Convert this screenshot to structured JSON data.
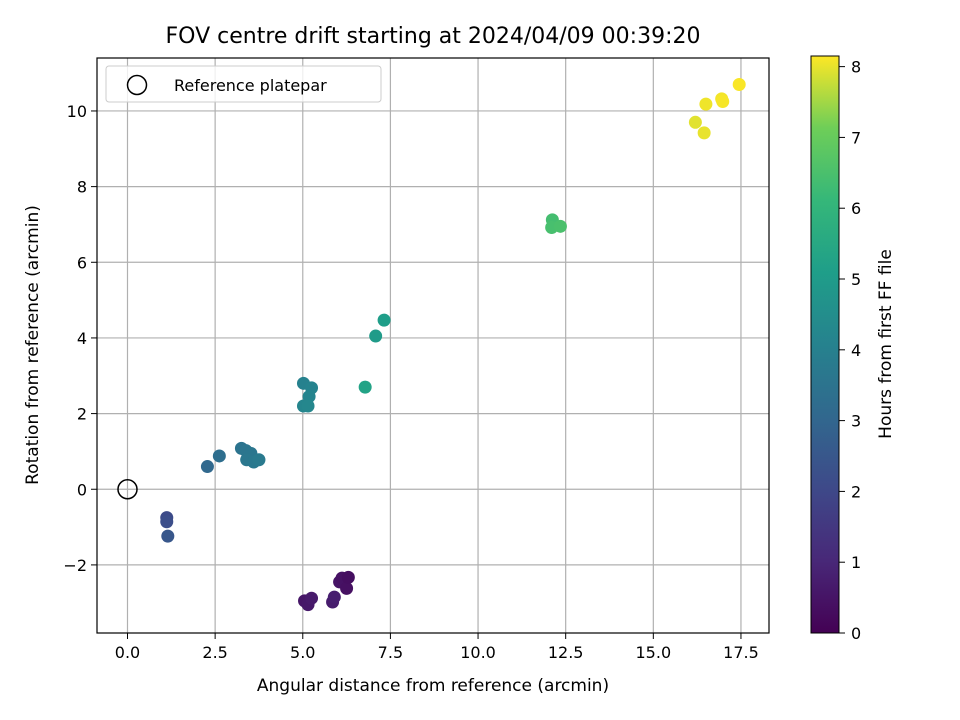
{
  "chart_data": {
    "type": "scatter",
    "title": "FOV centre drift starting at 2024/04/09 00:39:20",
    "xlabel": "Angular distance from reference (arcmin)",
    "ylabel": "Rotation from reference (arcmin)",
    "xlim": [
      -0.87,
      18.3
    ],
    "ylim": [
      -3.8,
      11.4
    ],
    "xticks": [
      0.0,
      2.5,
      5.0,
      7.5,
      10.0,
      12.5,
      15.0,
      17.5
    ],
    "xtick_labels": [
      "0.0",
      "2.5",
      "5.0",
      "7.5",
      "10.0",
      "12.5",
      "15.0",
      "17.5"
    ],
    "yticks": [
      -2,
      0,
      2,
      4,
      6,
      8,
      10
    ],
    "ytick_labels": [
      "−2",
      "0",
      "2",
      "4",
      "6",
      "8",
      "10"
    ],
    "grid": true,
    "legend": {
      "placement": "top-left",
      "entries": [
        "Reference platepar"
      ]
    },
    "reference_point": {
      "x": 0.0,
      "y": 0.0
    },
    "colorbar": {
      "label": "Hours from first FF file",
      "range": [
        0,
        8.15
      ],
      "ticks": [
        0,
        1,
        2,
        3,
        4,
        5,
        6,
        7,
        8
      ],
      "tick_labels": [
        "0",
        "1",
        "2",
        "3",
        "4",
        "5",
        "6",
        "7",
        "8"
      ],
      "colormap": "viridis"
    },
    "points": [
      {
        "x": 5.05,
        "y": -2.95,
        "h": 0.55
      },
      {
        "x": 5.15,
        "y": -3.05,
        "h": 0.6
      },
      {
        "x": 5.25,
        "y": -2.88,
        "h": 0.65
      },
      {
        "x": 5.85,
        "y": -2.98,
        "h": 0.7
      },
      {
        "x": 5.9,
        "y": -2.85,
        "h": 0.75
      },
      {
        "x": 6.05,
        "y": -2.45,
        "h": 0.5
      },
      {
        "x": 6.12,
        "y": -2.35,
        "h": 0.45
      },
      {
        "x": 6.25,
        "y": -2.62,
        "h": 0.4
      },
      {
        "x": 6.3,
        "y": -2.33,
        "h": 0.35
      },
      {
        "x": 1.12,
        "y": -0.75,
        "h": 2.1
      },
      {
        "x": 1.12,
        "y": -0.86,
        "h": 2.2
      },
      {
        "x": 1.15,
        "y": -1.24,
        "h": 2.5
      },
      {
        "x": 2.28,
        "y": 0.6,
        "h": 3.1
      },
      {
        "x": 2.62,
        "y": 0.88,
        "h": 3.3
      },
      {
        "x": 3.25,
        "y": 1.08,
        "h": 3.5
      },
      {
        "x": 3.38,
        "y": 1.02,
        "h": 3.55
      },
      {
        "x": 3.52,
        "y": 0.95,
        "h": 3.6
      },
      {
        "x": 3.4,
        "y": 0.78,
        "h": 3.65
      },
      {
        "x": 3.6,
        "y": 0.72,
        "h": 3.7
      },
      {
        "x": 3.75,
        "y": 0.78,
        "h": 3.75
      },
      {
        "x": 5.02,
        "y": 2.8,
        "h": 4.05
      },
      {
        "x": 5.25,
        "y": 2.68,
        "h": 4.1
      },
      {
        "x": 5.18,
        "y": 2.45,
        "h": 4.15
      },
      {
        "x": 5.02,
        "y": 2.2,
        "h": 4.2
      },
      {
        "x": 5.15,
        "y": 2.2,
        "h": 4.25
      },
      {
        "x": 6.78,
        "y": 2.7,
        "h": 5.3
      },
      {
        "x": 7.08,
        "y": 4.05,
        "h": 5.0
      },
      {
        "x": 7.32,
        "y": 4.47,
        "h": 5.1
      },
      {
        "x": 12.12,
        "y": 7.12,
        "h": 6.4
      },
      {
        "x": 12.1,
        "y": 6.92,
        "h": 6.45
      },
      {
        "x": 12.35,
        "y": 6.95,
        "h": 6.5
      },
      {
        "x": 16.2,
        "y": 9.7,
        "h": 7.95
      },
      {
        "x": 16.45,
        "y": 9.42,
        "h": 8.0
      },
      {
        "x": 16.5,
        "y": 10.18,
        "h": 8.05
      },
      {
        "x": 16.95,
        "y": 10.32,
        "h": 8.08
      },
      {
        "x": 16.98,
        "y": 10.25,
        "h": 8.1
      },
      {
        "x": 17.45,
        "y": 10.7,
        "h": 8.12
      }
    ]
  }
}
